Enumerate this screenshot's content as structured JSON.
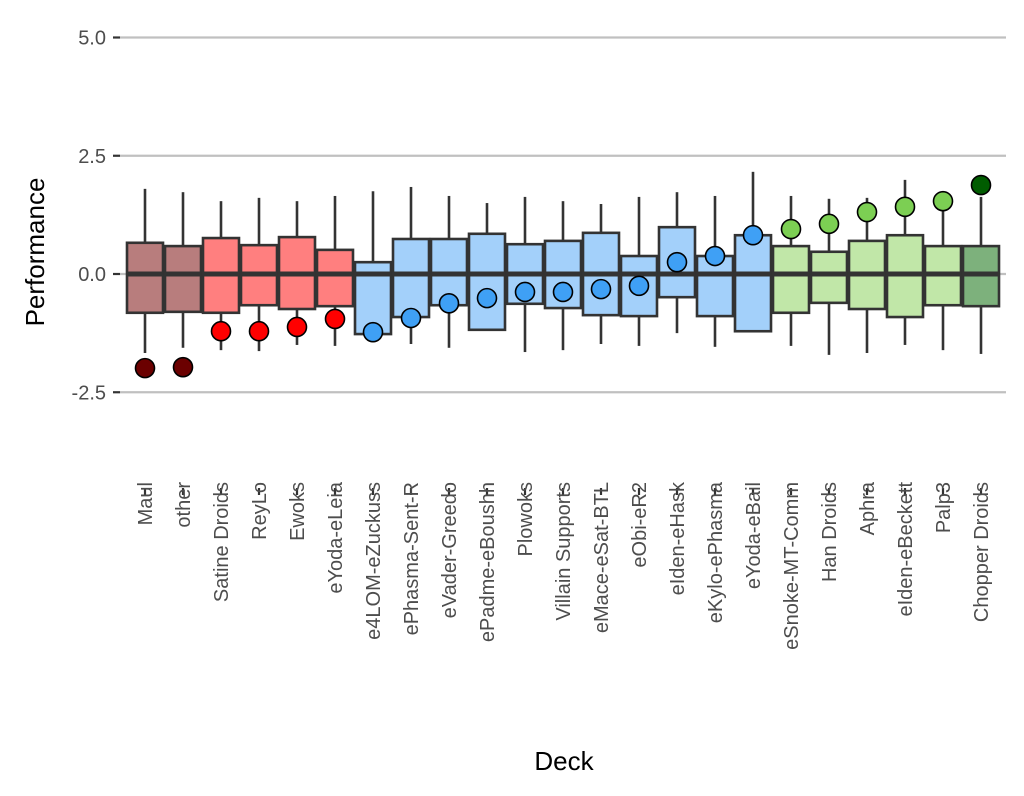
{
  "chart_data": {
    "type": "box",
    "title": "",
    "xlabel": "Deck",
    "ylabel": "Performance",
    "ylim": [
      -3.0,
      5.3
    ],
    "yticks": [
      5.0,
      2.5,
      0.0,
      -2.5
    ],
    "ytick_labels": [
      "5.0",
      "2.5",
      "0.0",
      "-2.5"
    ],
    "grid": "horizontal-major",
    "legend": "none",
    "colors": {
      "dark_red_box": "#b87d7d",
      "dark_red_point": "#6b0000",
      "red_box": "#ff7f7f",
      "red_point": "#ff0000",
      "blue_box": "#a3d0fa",
      "blue_point": "#3fa0f5",
      "green_box": "#c1e7a8",
      "green_point": "#7ccf53",
      "dark_green_box": "#7db17c",
      "dark_green_point": "#005c00",
      "box_outline": "#333333",
      "grid": "#c0c0c0"
    },
    "categories": [
      "Maul",
      "other",
      "Satine Droids",
      "ReyLo",
      "Ewoks",
      "eYoda-eLeia",
      "e4LOM-eZuckuss",
      "ePhasma-Sent-R",
      "eVader-Greedo",
      "ePadme-eBoushh",
      "Plowoks",
      "Villain Supports",
      "eMace-eSat-BTL",
      "eObi-eR2",
      "eIden-eHask",
      "eKylo-ePhasma",
      "eYoda-eBail",
      "eSnoke-MT-Comm",
      "Han Droids",
      "Aphra",
      "eIden-eBeckett",
      "Palp3",
      "Chopper Droids"
    ],
    "series": [
      {
        "name": "Maul",
        "group": "dark_red",
        "whisker_low": -1.67,
        "q1": -0.82,
        "median": 0.0,
        "q3": 0.66,
        "whisker_high": 1.8,
        "point": -1.99
      },
      {
        "name": "other",
        "group": "dark_red",
        "whisker_low": -1.56,
        "q1": -0.8,
        "median": 0.0,
        "q3": 0.59,
        "whisker_high": 1.73,
        "point": -1.97
      },
      {
        "name": "Satine Droids",
        "group": "red",
        "whisker_low": -1.61,
        "q1": -0.82,
        "median": 0.0,
        "q3": 0.76,
        "whisker_high": 1.54,
        "point": -1.21
      },
      {
        "name": "ReyLo",
        "group": "red",
        "whisker_low": -1.63,
        "q1": -0.66,
        "median": 0.0,
        "q3": 0.61,
        "whisker_high": 1.61,
        "point": -1.21
      },
      {
        "name": "Ewoks",
        "group": "red",
        "whisker_low": -1.5,
        "q1": -0.74,
        "median": 0.0,
        "q3": 0.78,
        "whisker_high": 1.54,
        "point": -1.12
      },
      {
        "name": "eYoda-eLeia",
        "group": "red",
        "whisker_low": -1.52,
        "q1": -0.68,
        "median": 0.0,
        "q3": 0.51,
        "whisker_high": 1.65,
        "point": -0.95
      },
      {
        "name": "e4LOM-eZuckuss",
        "group": "blue",
        "whisker_low": -1.3,
        "q1": -1.27,
        "median": 0.0,
        "q3": 0.25,
        "whisker_high": 1.75,
        "point": -1.23
      },
      {
        "name": "ePhasma-Sent-R",
        "group": "blue",
        "whisker_low": -1.48,
        "q1": -0.91,
        "median": 0.0,
        "q3": 0.74,
        "whisker_high": 1.84,
        "point": -0.93
      },
      {
        "name": "eVader-Greedo",
        "group": "blue",
        "whisker_low": -1.56,
        "q1": -0.66,
        "median": 0.0,
        "q3": 0.74,
        "whisker_high": 1.65,
        "point": -0.62
      },
      {
        "name": "ePadme-eBoushh",
        "group": "blue",
        "whisker_low": -1.18,
        "q1": -1.18,
        "median": 0.0,
        "q3": 0.85,
        "whisker_high": 1.5,
        "point": -0.51
      },
      {
        "name": "Plowoks",
        "group": "blue",
        "whisker_low": -1.65,
        "q1": -0.63,
        "median": 0.0,
        "q3": 0.63,
        "whisker_high": 1.63,
        "point": -0.38
      },
      {
        "name": "Villain Supports",
        "group": "blue",
        "whisker_low": -1.61,
        "q1": -0.72,
        "median": 0.0,
        "q3": 0.7,
        "whisker_high": 1.54,
        "point": -0.38
      },
      {
        "name": "eMace-eSat-BTL",
        "group": "blue",
        "whisker_low": -1.48,
        "q1": -0.87,
        "median": 0.0,
        "q3": 0.87,
        "whisker_high": 1.48,
        "point": -0.32
      },
      {
        "name": "eObi-eR2",
        "group": "blue",
        "whisker_low": -1.52,
        "q1": -0.89,
        "median": 0.0,
        "q3": 0.38,
        "whisker_high": 1.63,
        "point": -0.25
      },
      {
        "name": "eIden-eHask",
        "group": "blue",
        "whisker_low": -1.25,
        "q1": -0.49,
        "median": 0.0,
        "q3": 0.99,
        "whisker_high": 1.73,
        "point": 0.25
      },
      {
        "name": "eKylo-ePhasma",
        "group": "blue",
        "whisker_low": -1.54,
        "q1": -0.89,
        "median": 0.0,
        "q3": 0.38,
        "whisker_high": 1.65,
        "point": 0.38
      },
      {
        "name": "eYoda-eBail",
        "group": "blue",
        "whisker_low": -1.21,
        "q1": -1.21,
        "median": 0.0,
        "q3": 0.82,
        "whisker_high": 2.16,
        "point": 0.82
      },
      {
        "name": "eSnoke-MT-Comm",
        "group": "green",
        "whisker_low": -1.52,
        "q1": -0.82,
        "median": 0.0,
        "q3": 0.59,
        "whisker_high": 1.65,
        "point": 0.95
      },
      {
        "name": "Han Droids",
        "group": "green",
        "whisker_low": -1.71,
        "q1": -0.61,
        "median": 0.0,
        "q3": 0.47,
        "whisker_high": 1.59,
        "point": 1.06
      },
      {
        "name": "Aphra",
        "group": "green",
        "whisker_low": -1.67,
        "q1": -0.74,
        "median": 0.0,
        "q3": 0.7,
        "whisker_high": 1.61,
        "point": 1.31
      },
      {
        "name": "eIden-eBeckett",
        "group": "green",
        "whisker_low": -1.5,
        "q1": -0.91,
        "median": 0.0,
        "q3": 0.82,
        "whisker_high": 1.99,
        "point": 1.42
      },
      {
        "name": "Palp3",
        "group": "green",
        "whisker_low": -1.61,
        "q1": -0.66,
        "median": 0.0,
        "q3": 0.59,
        "whisker_high": 1.63,
        "point": 1.54
      },
      {
        "name": "Chopper Droids",
        "group": "dark_green",
        "whisker_low": -1.69,
        "q1": -0.68,
        "median": 0.0,
        "q3": 0.59,
        "whisker_high": 1.63,
        "point": 1.88
      }
    ]
  }
}
